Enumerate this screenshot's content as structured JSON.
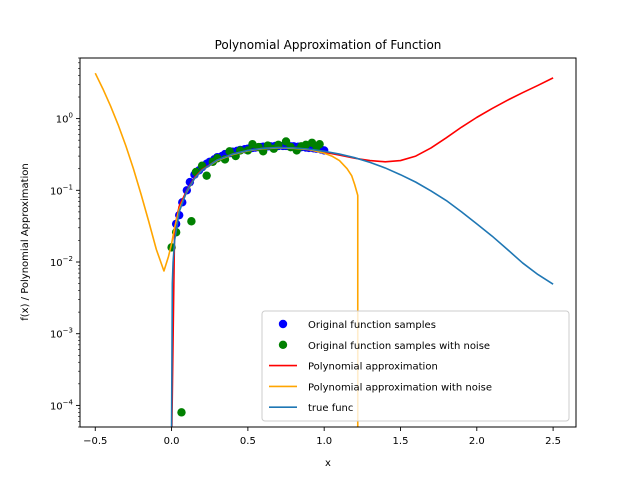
{
  "chart_data": {
    "type": "scatter",
    "title": "Polynomial Approximation of Function",
    "xlabel": "x",
    "ylabel": "f(x) / Polynomial Approximation",
    "yscale": "log",
    "xlim": [
      -0.6,
      2.65
    ],
    "ylim": [
      5e-05,
      7
    ],
    "grid": false,
    "legend_position": "lower-right",
    "x_ticks": [
      {
        "value": -0.5,
        "label": "−0.5"
      },
      {
        "value": 0.0,
        "label": "0.0"
      },
      {
        "value": 0.5,
        "label": "0.5"
      },
      {
        "value": 1.0,
        "label": "1.0"
      },
      {
        "value": 1.5,
        "label": "1.5"
      },
      {
        "value": 2.0,
        "label": "2.0"
      },
      {
        "value": 2.5,
        "label": "2.5"
      }
    ],
    "y_ticks": [
      {
        "value": 0.0001,
        "base": "10",
        "exp": "−4"
      },
      {
        "value": 0.001,
        "base": "10",
        "exp": "−3"
      },
      {
        "value": 0.01,
        "base": "10",
        "exp": "−2"
      },
      {
        "value": 0.1,
        "base": "10",
        "exp": "−1"
      },
      {
        "value": 1,
        "base": "10",
        "exp": "0"
      }
    ],
    "series": [
      {
        "name": "Original function samples",
        "kind": "scatter",
        "color": "#0000ff",
        "points": [
          [
            0.03,
            0.034
          ],
          [
            0.05,
            0.045
          ],
          [
            0.07,
            0.068
          ],
          [
            0.1,
            0.1
          ],
          [
            0.12,
            0.13
          ],
          [
            0.15,
            0.165
          ],
          [
            0.18,
            0.19
          ],
          [
            0.2,
            0.21
          ],
          [
            0.23,
            0.235
          ],
          [
            0.25,
            0.25
          ],
          [
            0.28,
            0.27
          ],
          [
            0.3,
            0.29
          ],
          [
            0.33,
            0.3
          ],
          [
            0.35,
            0.32
          ],
          [
            0.38,
            0.33
          ],
          [
            0.4,
            0.345
          ],
          [
            0.43,
            0.355
          ],
          [
            0.45,
            0.365
          ],
          [
            0.48,
            0.375
          ],
          [
            0.5,
            0.38
          ],
          [
            0.53,
            0.39
          ],
          [
            0.55,
            0.395
          ],
          [
            0.58,
            0.4
          ],
          [
            0.6,
            0.405
          ],
          [
            0.63,
            0.41
          ],
          [
            0.65,
            0.41
          ],
          [
            0.68,
            0.415
          ],
          [
            0.7,
            0.415
          ],
          [
            0.73,
            0.415
          ],
          [
            0.75,
            0.415
          ],
          [
            0.78,
            0.41
          ],
          [
            0.8,
            0.41
          ],
          [
            0.83,
            0.405
          ],
          [
            0.85,
            0.4
          ],
          [
            0.88,
            0.395
          ],
          [
            0.9,
            0.39
          ],
          [
            0.93,
            0.385
          ],
          [
            0.95,
            0.38
          ],
          [
            0.98,
            0.37
          ],
          [
            1.0,
            0.36
          ]
        ]
      },
      {
        "name": "Original function samples with noise",
        "kind": "scatter",
        "color": "#008000",
        "points": [
          [
            0.0,
            0.016
          ],
          [
            0.03,
            0.026
          ],
          [
            0.065,
            8e-05
          ],
          [
            0.13,
            0.037
          ],
          [
            0.16,
            0.18
          ],
          [
            0.2,
            0.22
          ],
          [
            0.23,
            0.16
          ],
          [
            0.27,
            0.25
          ],
          [
            0.3,
            0.28
          ],
          [
            0.35,
            0.27
          ],
          [
            0.38,
            0.35
          ],
          [
            0.42,
            0.3
          ],
          [
            0.45,
            0.36
          ],
          [
            0.5,
            0.36
          ],
          [
            0.53,
            0.44
          ],
          [
            0.57,
            0.4
          ],
          [
            0.6,
            0.35
          ],
          [
            0.63,
            0.42
          ],
          [
            0.67,
            0.38
          ],
          [
            0.7,
            0.43
          ],
          [
            0.75,
            0.48
          ],
          [
            0.78,
            0.4
          ],
          [
            0.82,
            0.36
          ],
          [
            0.85,
            0.41
          ],
          [
            0.88,
            0.43
          ],
          [
            0.92,
            0.46
          ],
          [
            0.95,
            0.4
          ],
          [
            0.97,
            0.44
          ]
        ]
      },
      {
        "name": "Polynomial approximation",
        "kind": "line",
        "color": "#ff0000",
        "points": [
          [
            0.0,
            0.0
          ],
          [
            0.02,
            0.03
          ],
          [
            0.05,
            0.06
          ],
          [
            0.1,
            0.1
          ],
          [
            0.15,
            0.15
          ],
          [
            0.2,
            0.195
          ],
          [
            0.3,
            0.265
          ],
          [
            0.4,
            0.32
          ],
          [
            0.5,
            0.36
          ],
          [
            0.6,
            0.385
          ],
          [
            0.7,
            0.395
          ],
          [
            0.8,
            0.39
          ],
          [
            0.9,
            0.37
          ],
          [
            1.0,
            0.34
          ],
          [
            1.1,
            0.31
          ],
          [
            1.2,
            0.28
          ],
          [
            1.3,
            0.26
          ],
          [
            1.4,
            0.25
          ],
          [
            1.5,
            0.26
          ],
          [
            1.6,
            0.3
          ],
          [
            1.7,
            0.39
          ],
          [
            1.8,
            0.54
          ],
          [
            1.9,
            0.76
          ],
          [
            2.0,
            1.04
          ],
          [
            2.1,
            1.38
          ],
          [
            2.2,
            1.8
          ],
          [
            2.3,
            2.3
          ],
          [
            2.4,
            2.9
          ],
          [
            2.5,
            3.7
          ]
        ]
      },
      {
        "name": "Polynomial approximation with noise",
        "kind": "line",
        "color": "#ffa500",
        "points": [
          [
            -0.5,
            4.3
          ],
          [
            -0.45,
            2.6
          ],
          [
            -0.4,
            1.5
          ],
          [
            -0.35,
            0.82
          ],
          [
            -0.3,
            0.42
          ],
          [
            -0.25,
            0.2
          ],
          [
            -0.2,
            0.088
          ],
          [
            -0.15,
            0.037
          ],
          [
            -0.1,
            0.015
          ],
          [
            -0.05,
            0.0075
          ],
          [
            -0.02,
            0.012
          ],
          [
            0.0,
            0.018
          ],
          [
            0.02,
            0.03
          ],
          [
            0.05,
            0.055
          ],
          [
            0.1,
            0.095
          ],
          [
            0.15,
            0.145
          ],
          [
            0.2,
            0.19
          ],
          [
            0.3,
            0.26
          ],
          [
            0.4,
            0.315
          ],
          [
            0.5,
            0.355
          ],
          [
            0.6,
            0.38
          ],
          [
            0.7,
            0.39
          ],
          [
            0.8,
            0.385
          ],
          [
            0.9,
            0.37
          ],
          [
            1.0,
            0.33
          ],
          [
            1.05,
            0.3
          ],
          [
            1.1,
            0.26
          ],
          [
            1.15,
            0.2
          ],
          [
            1.18,
            0.16
          ],
          [
            1.2,
            0.12
          ],
          [
            1.22,
            0.085
          ],
          [
            1.22,
            5e-05
          ]
        ]
      },
      {
        "name": "true func",
        "kind": "line",
        "color": "#1f77b4",
        "points": [
          [
            0.0,
            5e-05
          ],
          [
            0.005,
            0.005
          ],
          [
            0.01,
            0.01
          ],
          [
            0.02,
            0.02
          ],
          [
            0.05,
            0.05
          ],
          [
            0.1,
            0.098
          ],
          [
            0.15,
            0.145
          ],
          [
            0.2,
            0.19
          ],
          [
            0.3,
            0.265
          ],
          [
            0.4,
            0.32
          ],
          [
            0.5,
            0.36
          ],
          [
            0.6,
            0.385
          ],
          [
            0.7,
            0.395
          ],
          [
            0.8,
            0.39
          ],
          [
            0.9,
            0.375
          ],
          [
            1.0,
            0.35
          ],
          [
            1.1,
            0.32
          ],
          [
            1.2,
            0.285
          ],
          [
            1.3,
            0.245
          ],
          [
            1.4,
            0.205
          ],
          [
            1.5,
            0.165
          ],
          [
            1.6,
            0.13
          ],
          [
            1.7,
            0.098
          ],
          [
            1.8,
            0.072
          ],
          [
            1.9,
            0.05
          ],
          [
            2.0,
            0.034
          ],
          [
            2.1,
            0.023
          ],
          [
            2.2,
            0.015
          ],
          [
            2.3,
            0.0097
          ],
          [
            2.4,
            0.0067
          ],
          [
            2.5,
            0.0049
          ]
        ]
      }
    ]
  }
}
